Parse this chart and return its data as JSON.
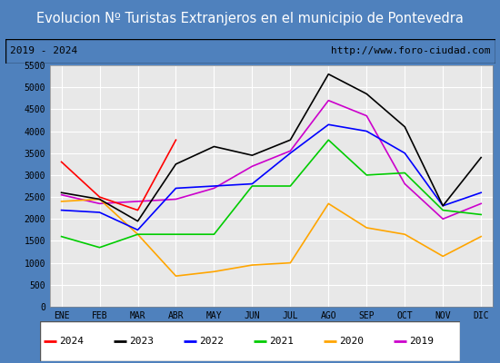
{
  "title": "Evolucion Nº Turistas Extranjeros en el municipio de Pontevedra",
  "subtitle_left": "2019 - 2024",
  "subtitle_right": "http://www.foro-ciudad.com",
  "months": [
    "ENE",
    "FEB",
    "MAR",
    "ABR",
    "MAY",
    "JUN",
    "JUL",
    "AGO",
    "SEP",
    "OCT",
    "NOV",
    "DIC"
  ],
  "series": {
    "2024": [
      3300,
      2500,
      2200,
      3800,
      null,
      null,
      null,
      null,
      null,
      null,
      null,
      null
    ],
    "2023": [
      2600,
      2450,
      1950,
      3250,
      3650,
      3450,
      3800,
      5300,
      4850,
      4100,
      2300,
      3400
    ],
    "2022": [
      2200,
      2150,
      1750,
      2700,
      2750,
      2800,
      3500,
      4150,
      4000,
      3500,
      2300,
      2600
    ],
    "2021": [
      1600,
      1350,
      1650,
      1650,
      1650,
      2750,
      2750,
      3800,
      3000,
      3050,
      2200,
      2100
    ],
    "2020": [
      2400,
      2450,
      1650,
      700,
      800,
      950,
      1000,
      2350,
      1800,
      1650,
      1150,
      1600
    ],
    "2019": [
      2550,
      2350,
      2400,
      2450,
      2700,
      3200,
      3550,
      4700,
      4350,
      2800,
      2000,
      2350
    ]
  },
  "colors": {
    "2024": "#ff0000",
    "2023": "#000000",
    "2022": "#0000ff",
    "2021": "#00cc00",
    "2020": "#ffa500",
    "2019": "#cc00cc"
  },
  "ylim": [
    0,
    5500
  ],
  "yticks": [
    0,
    500,
    1000,
    1500,
    2000,
    2500,
    3000,
    3500,
    4000,
    4500,
    5000,
    5500
  ],
  "title_fontsize": 10.5,
  "title_bg_color": "#4f81bd",
  "title_text_color": "#ffffff",
  "plot_bg_color": "#e8e8e8",
  "grid_color": "#ffffff",
  "legend_years": [
    "2024",
    "2023",
    "2022",
    "2021",
    "2020",
    "2019"
  ]
}
